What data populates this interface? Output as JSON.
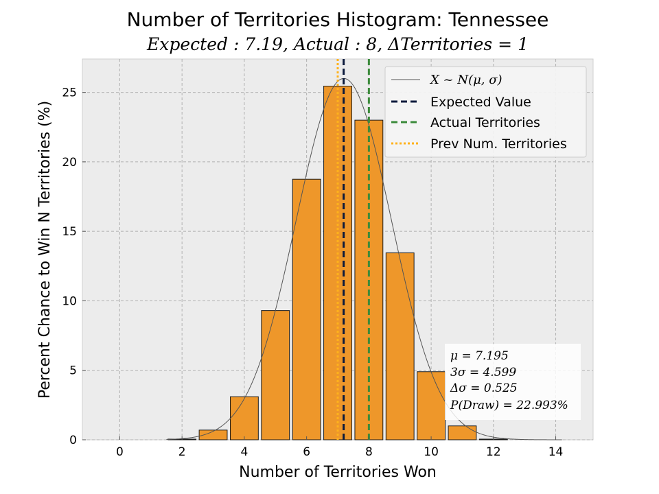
{
  "chart_data": {
    "type": "bar",
    "title": "Number of Territories Histogram: Tennessee",
    "subtitle": "Expected : 7.19, Actual : 8, ΔTerritories = 1",
    "xlabel": "Number of Territories Won",
    "ylabel": "Percent Chance to Win N Territories (%)",
    "xlim": [
      -1.2,
      15.2
    ],
    "ylim": [
      0,
      27.4
    ],
    "xticks": [
      0,
      2,
      4,
      6,
      8,
      10,
      12,
      14
    ],
    "yticks": [
      0,
      5,
      10,
      15,
      20,
      25
    ],
    "grid": true,
    "bars": {
      "x": [
        0,
        1,
        2,
        3,
        4,
        5,
        6,
        7,
        8,
        9,
        10,
        11,
        12,
        13,
        14
      ],
      "values": [
        0.0,
        0.0,
        0.05,
        0.7,
        3.1,
        9.3,
        18.75,
        25.45,
        23.0,
        13.45,
        4.9,
        1.0,
        0.05,
        0.0,
        0.0
      ],
      "color": "#ee972a"
    },
    "normal_curve": {
      "mu": 7.195,
      "sigma": 1.533,
      "peak": 26.0
    },
    "vlines": [
      {
        "name": "Expected Value",
        "x": 7.19,
        "style": "dashed",
        "color": "#0b1a3c"
      },
      {
        "name": "Actual Territories",
        "x": 8,
        "style": "dashed",
        "color": "#3a8a3a"
      },
      {
        "name": "Prev Num. Territories",
        "x": 7,
        "style": "dotted",
        "color": "#ffb21c"
      }
    ],
    "legend": {
      "placement": "top-right",
      "entries": [
        {
          "label": "X ~ N(μ, σ)",
          "style": "line",
          "color": "#555555"
        },
        {
          "label": "Expected Value",
          "style": "dashed",
          "color": "#0b1a3c"
        },
        {
          "label": "Actual Territories",
          "style": "dashed",
          "color": "#3a8a3a"
        },
        {
          "label": "Prev Num. Territories",
          "style": "dotted",
          "color": "#ffb21c"
        }
      ]
    },
    "stats_box": {
      "placement": "lower-right",
      "lines": [
        "μ = 7.195",
        "3σ = 4.599",
        "Δσ = 0.525",
        "P(Draw) = 22.993%"
      ]
    }
  }
}
